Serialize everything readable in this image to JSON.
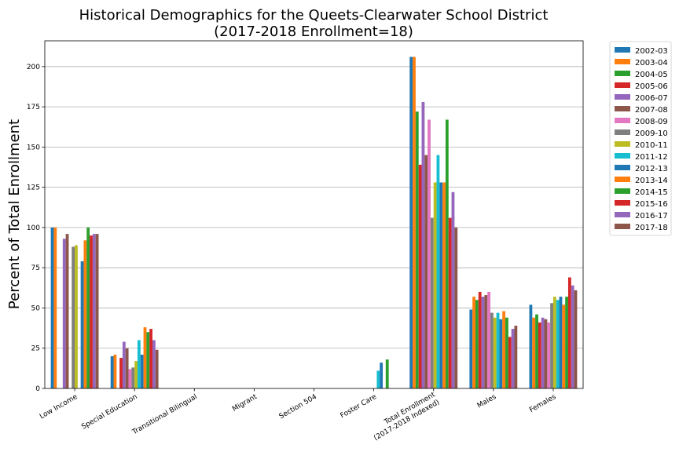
{
  "chart_data": {
    "type": "bar",
    "title_lines": [
      "Historical Demographics for the Queets-Clearwater School District",
      "(2017-2018 Enrollment=18)"
    ],
    "ylabel": "Percent of Total Enrollment",
    "xlabel": "",
    "ylim": [
      0,
      216
    ],
    "yticks": [
      0,
      25,
      50,
      75,
      100,
      125,
      150,
      175,
      200
    ],
    "grid": "horizontal",
    "legend_position": "outside-right",
    "categories": [
      [
        "Low Income"
      ],
      [
        "Special Education"
      ],
      [
        "Transitional Bilingual"
      ],
      [
        "Migrant"
      ],
      [
        "Section 504"
      ],
      [
        "Foster Care"
      ],
      [
        "Total Enrollment",
        "(2017-2018 Indexed)"
      ],
      [
        "Males"
      ],
      [
        "Females"
      ]
    ],
    "series": [
      {
        "name": "2002-03",
        "color": "#1f77b4",
        "values": [
          100,
          20,
          0,
          0,
          0,
          0,
          206,
          49,
          52
        ]
      },
      {
        "name": "2003-04",
        "color": "#ff7f0e",
        "values": [
          100,
          21,
          0,
          0,
          0,
          0,
          206,
          57,
          44
        ]
      },
      {
        "name": "2004-05",
        "color": "#2ca02c",
        "values": [
          0,
          0,
          0,
          0,
          0,
          0,
          172,
          55,
          46
        ]
      },
      {
        "name": "2005-06",
        "color": "#d62728",
        "values": [
          0,
          19,
          0,
          0,
          0,
          0,
          139,
          60,
          41
        ]
      },
      {
        "name": "2006-07",
        "color": "#9467bd",
        "values": [
          93,
          29,
          0,
          0,
          0,
          0,
          178,
          57,
          44
        ]
      },
      {
        "name": "2007-08",
        "color": "#8c564b",
        "values": [
          96,
          25,
          0,
          0,
          0,
          0,
          145,
          58,
          43
        ]
      },
      {
        "name": "2008-09",
        "color": "#e377c2",
        "values": [
          0,
          12,
          0,
          0,
          0,
          0,
          167,
          60,
          41
        ]
      },
      {
        "name": "2009-10",
        "color": "#7f7f7f",
        "values": [
          88,
          13,
          0,
          0,
          0,
          0,
          106,
          47,
          53
        ]
      },
      {
        "name": "2010-11",
        "color": "#bcbd22",
        "values": [
          89,
          17,
          0,
          0,
          0,
          0,
          128,
          44,
          57
        ]
      },
      {
        "name": "2011-12",
        "color": "#17becf",
        "values": [
          0,
          30,
          0,
          0,
          0,
          11,
          145,
          47,
          55
        ]
      },
      {
        "name": "2012-13",
        "color": "#1f77b4",
        "values": [
          79,
          21,
          0,
          0,
          0,
          16,
          128,
          43,
          57
        ]
      },
      {
        "name": "2013-14",
        "color": "#ff7f0e",
        "values": [
          92,
          38,
          0,
          0,
          0,
          0,
          128,
          48,
          52
        ]
      },
      {
        "name": "2014-15",
        "color": "#2ca02c",
        "values": [
          100,
          35,
          0,
          0,
          0,
          18,
          167,
          44,
          57
        ]
      },
      {
        "name": "2015-16",
        "color": "#d62728",
        "values": [
          95,
          37,
          0,
          0,
          0,
          0,
          106,
          32,
          69
        ]
      },
      {
        "name": "2016-17",
        "color": "#9467bd",
        "values": [
          96,
          30,
          0,
          0,
          0,
          0,
          122,
          37,
          64
        ]
      },
      {
        "name": "2017-18",
        "color": "#8c564b",
        "values": [
          96,
          24,
          0,
          0,
          0,
          0,
          100,
          39,
          61
        ]
      }
    ]
  }
}
